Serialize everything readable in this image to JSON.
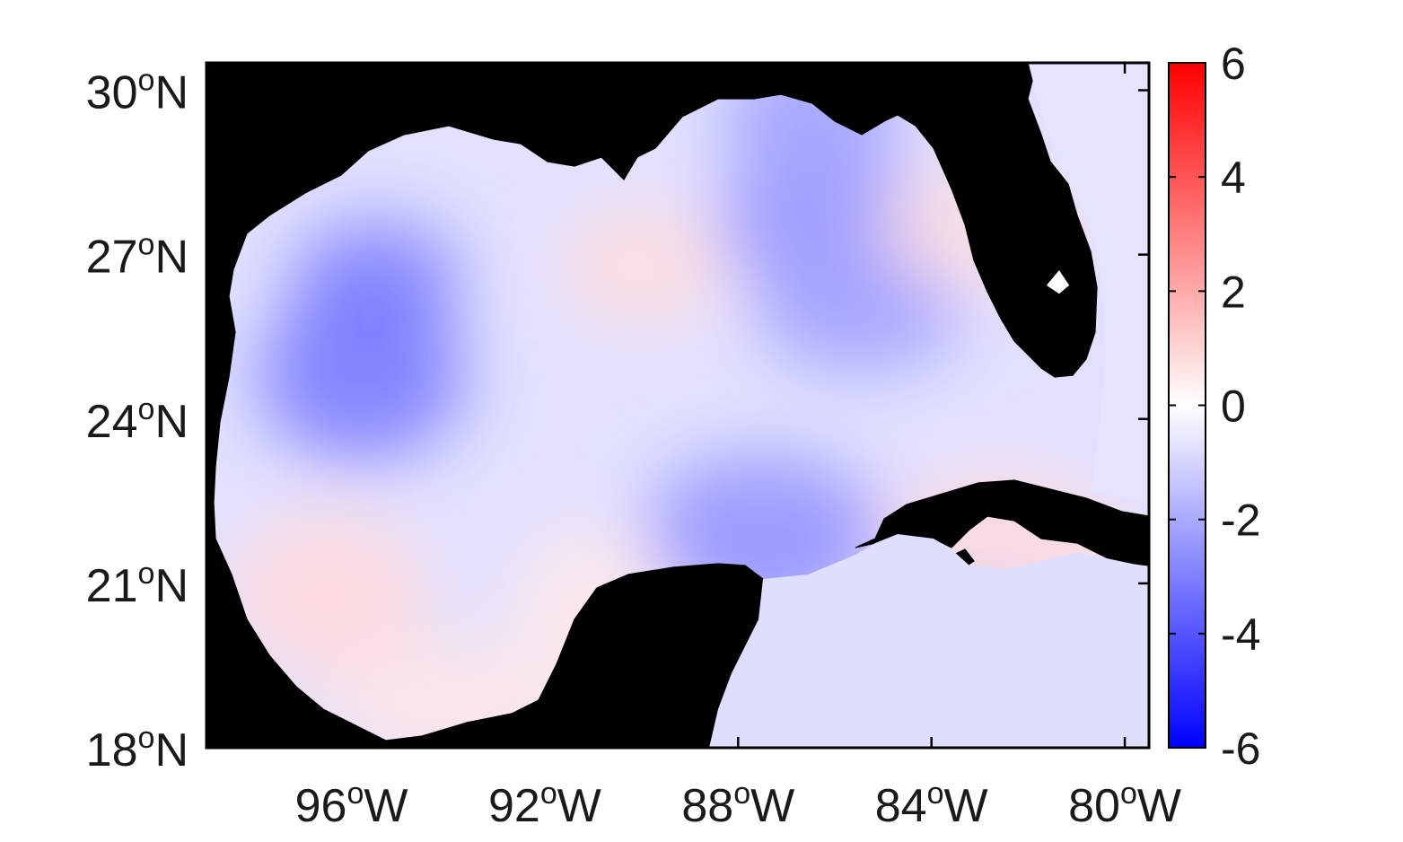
{
  "chart_data": {
    "type": "heatmap",
    "title": "",
    "region": "Gulf of Mexico",
    "projection": "geographic lat/lon",
    "xlim_lon": [
      -99,
      -79.5
    ],
    "ylim_lat": [
      18,
      30.5
    ],
    "lon_ticks": [
      {
        "value": -96,
        "deg": "96",
        "sup": "o",
        "hem": "W"
      },
      {
        "value": -92,
        "deg": "92",
        "sup": "o",
        "hem": "W"
      },
      {
        "value": -88,
        "deg": "88",
        "sup": "o",
        "hem": "W"
      },
      {
        "value": -84,
        "deg": "84",
        "sup": "o",
        "hem": "W"
      },
      {
        "value": -80,
        "deg": "80",
        "sup": "o",
        "hem": "W"
      }
    ],
    "lat_ticks": [
      {
        "value": 30,
        "deg": "30",
        "sup": "o",
        "hem": "N"
      },
      {
        "value": 27,
        "deg": "27",
        "sup": "o",
        "hem": "N"
      },
      {
        "value": 24,
        "deg": "24",
        "sup": "o",
        "hem": "N"
      },
      {
        "value": 21,
        "deg": "21",
        "sup": "o",
        "hem": "N"
      },
      {
        "value": 18,
        "deg": "18",
        "sup": "o",
        "hem": "N"
      }
    ],
    "colorbar": {
      "range": [
        -6,
        6
      ],
      "ticks": [
        {
          "value": 6,
          "label": "6"
        },
        {
          "value": 4,
          "label": "4"
        },
        {
          "value": 2,
          "label": "2"
        },
        {
          "value": 0,
          "label": "0"
        },
        {
          "value": -2,
          "label": "-2"
        },
        {
          "value": -4,
          "label": "-4"
        },
        {
          "value": -6,
          "label": "-6"
        }
      ],
      "colormap": "blue-white-red diverging",
      "color_low": "#0000ff",
      "color_mid": "#ffffff",
      "color_high": "#ff0000"
    },
    "land_color": "#808080",
    "background_field_value": -0.7,
    "field_anomalies": [
      {
        "region": "northwestern shelf",
        "lon": -95.5,
        "lat": 26.5,
        "value": -3.0
      },
      {
        "region": "western gulf",
        "lon": -95.8,
        "lat": 24.8,
        "value": -3.2
      },
      {
        "region": "northeastern gulf",
        "lon": -86.0,
        "lat": 27.5,
        "value": -2.5
      },
      {
        "region": "north-central coast",
        "lon": -86.5,
        "lat": 29.3,
        "value": -2.3
      },
      {
        "region": "eastern gulf",
        "lon": -85.5,
        "lat": 26.0,
        "value": -2.3
      },
      {
        "region": "Campeche Bank north edge",
        "lon": -87.5,
        "lat": 21.8,
        "value": -2.6
      },
      {
        "region": "central gulf",
        "lon": -90.0,
        "lat": 26.8,
        "value": 0.8
      },
      {
        "region": "southwestern coast",
        "lon": -96.5,
        "lat": 20.8,
        "value": 0.9
      },
      {
        "region": "Bay of Campeche",
        "lon": -94.0,
        "lat": 18.8,
        "value": 0.6
      },
      {
        "region": "Yucatan west shelf",
        "lon": -91.0,
        "lat": 20.5,
        "value": 0.5
      },
      {
        "region": "West Florida shelf",
        "lon": -83.0,
        "lat": 27.5,
        "value": 0.7
      },
      {
        "region": "south of Cuba",
        "lon": -82.5,
        "lat": 21.5,
        "value": 0.9
      },
      {
        "region": "Straits / Caribbean",
        "lon": -83.0,
        "lat": 20.0,
        "value": -1.0
      }
    ]
  }
}
